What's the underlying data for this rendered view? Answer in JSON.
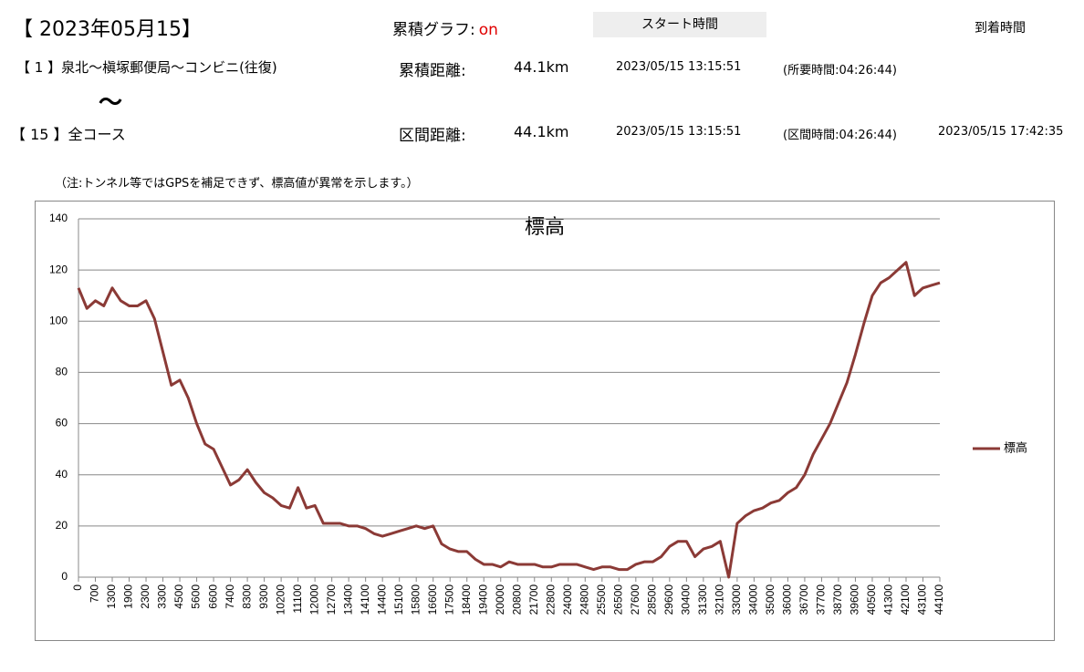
{
  "header": {
    "date": "【 2023年05月15】",
    "graph_label": "累積グラフ:",
    "graph_state": "on",
    "start_label": "スタート時間",
    "arrival_label": "到着時間",
    "route_from": "【 1 】泉北～槇塚郵便局～コンビニ(往復)",
    "tilde": "～",
    "route_to": "【 15 】全コース",
    "total_label": "累積距離:",
    "total_distance": "44.1km",
    "total_start": "2023/05/15 13:15:51",
    "total_time": "(所要時間:04:26:44)",
    "section_label": "区間距離:",
    "section_distance": "44.1km",
    "section_start": "2023/05/15 13:15:51",
    "section_time": "(区間時間:04:26:44)",
    "section_arrival": "2023/05/15 17:42:35",
    "note": "（注:トンネル等ではGPSを補足できず、標高値が異常を示します。）"
  },
  "chart_data": {
    "type": "line",
    "title": "標高",
    "categories": [
      0,
      null,
      700,
      null,
      1300,
      null,
      1900,
      null,
      2300,
      null,
      3300,
      null,
      4500,
      null,
      5600,
      null,
      6600,
      null,
      7400,
      null,
      8300,
      null,
      9300,
      null,
      10200,
      null,
      11100,
      null,
      12000,
      null,
      12700,
      null,
      13400,
      null,
      14100,
      null,
      14400,
      null,
      15100,
      null,
      15800,
      null,
      16600,
      null,
      17500,
      null,
      18400,
      null,
      19400,
      null,
      20000,
      null,
      20800,
      null,
      21700,
      null,
      22800,
      null,
      24000,
      null,
      24800,
      null,
      25500,
      null,
      26500,
      null,
      27600,
      null,
      28500,
      null,
      29600,
      null,
      30400,
      null,
      31300,
      null,
      32100,
      null,
      33000,
      null,
      34000,
      null,
      35000,
      null,
      36000,
      null,
      36700,
      null,
      37700,
      null,
      38700,
      null,
      39600,
      null,
      40500,
      null,
      41300,
      null,
      42100,
      null,
      43100,
      null,
      44100
    ],
    "series": [
      {
        "name": "標高",
        "color": "#8b3a36",
        "values": [
          113,
          105,
          108,
          106,
          113,
          108,
          106,
          106,
          108,
          101,
          88,
          75,
          77,
          70,
          60,
          52,
          50,
          43,
          36,
          38,
          42,
          37,
          33,
          31,
          28,
          27,
          35,
          27,
          28,
          21,
          21,
          21,
          20,
          20,
          19,
          17,
          16,
          17,
          18,
          19,
          20,
          19,
          20,
          13,
          11,
          10,
          10,
          7,
          5,
          5,
          4,
          6,
          5,
          5,
          5,
          4,
          4,
          5,
          5,
          5,
          4,
          3,
          4,
          4,
          3,
          3,
          5,
          6,
          6,
          8,
          12,
          14,
          14,
          8,
          11,
          12,
          14,
          0,
          21,
          24,
          26,
          27,
          29,
          30,
          33,
          35,
          40,
          48,
          54,
          60,
          68,
          76,
          87,
          99,
          110,
          115,
          117,
          120,
          123,
          110,
          113,
          114,
          115
        ]
      }
    ],
    "ylim": [
      0,
      140
    ],
    "yticks": [
      0,
      20,
      40,
      60,
      80,
      100,
      120,
      140
    ],
    "grid": true,
    "legend": "right"
  }
}
